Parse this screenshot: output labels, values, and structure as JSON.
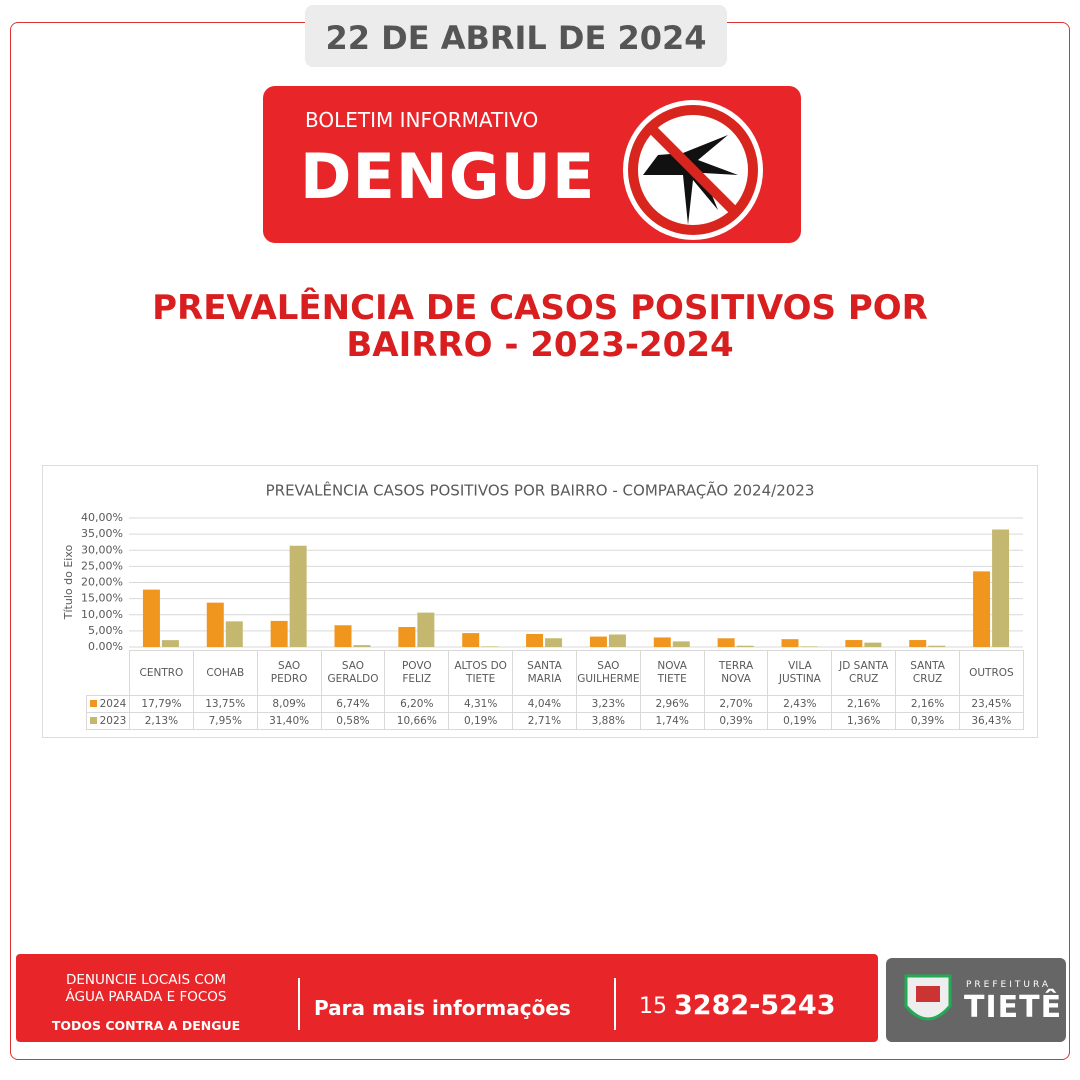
{
  "header": {
    "date": "22 DE ABRIL DE 2024",
    "kicker": "BOLETIM INFORMATIVO",
    "title": "DENGUE",
    "headline": "PREVALÊNCIA DE CASOS POSITIVOS POR BAIRRO - 2023-2024"
  },
  "chart_data": {
    "type": "bar",
    "title": "PREVALÊNCIA CASOS POSITIVOS POR BAIRRO - COMPARAÇÃO 2024/2023",
    "y_label": "Título do Eixo",
    "categories": [
      "CENTRO",
      "COHAB",
      "SAO PEDRO",
      "SAO GERALDO",
      "POVO FELIZ",
      "ALTOS DO TIETE",
      "SANTA MARIA",
      "SAO GUILHERME",
      "NOVA TIETE",
      "TERRA NOVA",
      "VILA JUSTINA",
      "JD SANTA CRUZ",
      "SANTA CRUZ",
      "OUTROS"
    ],
    "series": [
      {
        "name": "2024",
        "color": "#f0961e",
        "values": [
          17.79,
          13.75,
          8.09,
          6.74,
          6.2,
          4.31,
          4.04,
          3.23,
          2.96,
          2.7,
          2.43,
          2.16,
          2.16,
          23.45
        ],
        "value_labels": [
          "17,79%",
          "13,75%",
          "8,09%",
          "6,74%",
          "6,20%",
          "4,31%",
          "4,04%",
          "3,23%",
          "2,96%",
          "2,70%",
          "2,43%",
          "2,16%",
          "2,16%",
          "23,45%"
        ]
      },
      {
        "name": "2023",
        "color": "#c4b870",
        "values": [
          2.13,
          7.95,
          31.4,
          0.58,
          10.66,
          0.19,
          2.71,
          3.88,
          1.74,
          0.39,
          0.19,
          1.36,
          0.39,
          36.43
        ],
        "value_labels": [
          "2,13%",
          "7,95%",
          "31,40%",
          "0,58%",
          "10,66%",
          "0,19%",
          "2,71%",
          "3,88%",
          "1,74%",
          "0,39%",
          "0,19%",
          "1,36%",
          "0,39%",
          "36,43%"
        ]
      }
    ],
    "ylim": [
      0,
      40
    ],
    "yticks": [
      {
        "value": 0,
        "label": "0,00%"
      },
      {
        "value": 5,
        "label": "5,00%"
      },
      {
        "value": 10,
        "label": "10,00%"
      },
      {
        "value": 15,
        "label": "15,00%"
      },
      {
        "value": 20,
        "label": "20,00%"
      },
      {
        "value": 25,
        "label": "25,00%"
      },
      {
        "value": 30,
        "label": "30,00%"
      },
      {
        "value": 35,
        "label": "35,00%"
      },
      {
        "value": 40,
        "label": "40,00%"
      }
    ],
    "grid": true
  },
  "footer": {
    "line1": "DENUNCIE LOCAIS COM ÁGUA PARADA E FOCOS",
    "line2": "TODOS CONTRA A DENGUE",
    "info": "Para mais informações",
    "area_code": "15",
    "phone": "3282-5243",
    "logo_top": "PREFEITURA",
    "logo_name": "TIETÊ"
  }
}
